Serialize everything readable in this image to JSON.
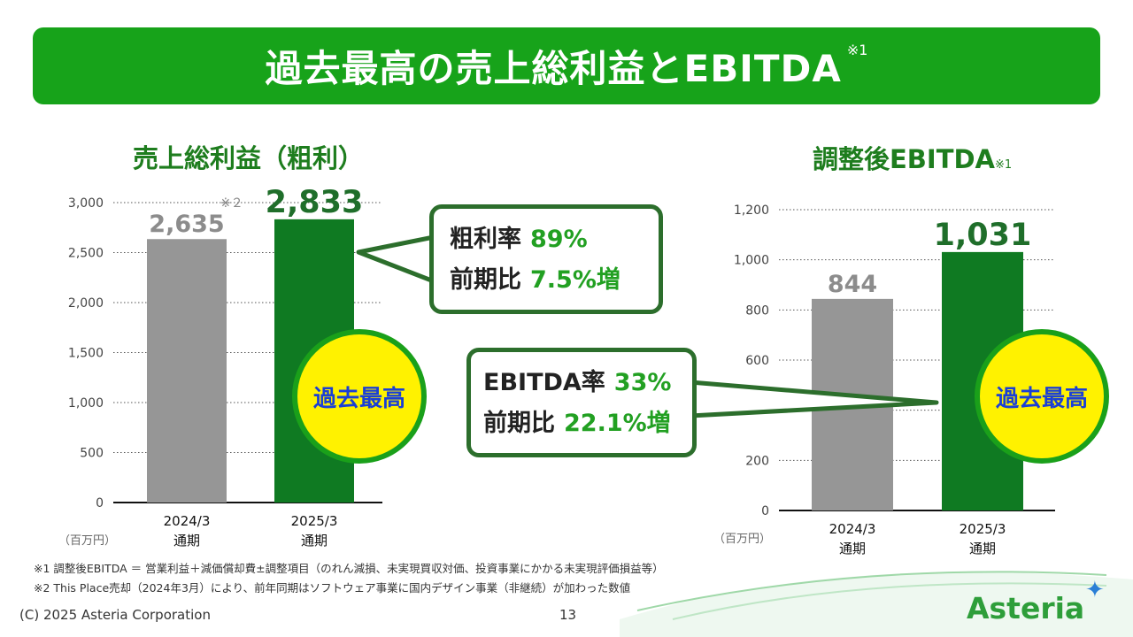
{
  "banner": {
    "title": "過去最高の売上総利益とEBITDA",
    "note": "※1"
  },
  "left": {
    "title": "売上総利益（粗利）",
    "unit": "（百万円）",
    "note": "※２",
    "badge": "過去最高",
    "callout": {
      "line1_label": "粗利率",
      "line1_value": "89%",
      "line2_label": "前期比",
      "line2_value": "7.5%増"
    }
  },
  "right": {
    "title": "調整後EBITDA",
    "title_note": "※1",
    "unit": "（百万円）",
    "badge": "過去最高",
    "callout": {
      "line1_label": "EBITDA率",
      "line1_value": "33%",
      "line2_label": "前期比",
      "line2_value": "22.1%増"
    }
  },
  "chart_data": [
    {
      "type": "bar",
      "title": "売上総利益（粗利）",
      "categories": [
        "2024/3\n通期",
        "2025/3\n通期"
      ],
      "values": [
        2635,
        2833
      ],
      "value_labels": [
        "2,635",
        "2,833"
      ],
      "yticks": [
        "0",
        "500",
        "1,000",
        "1,500",
        "2,000",
        "2,500",
        "3,000"
      ],
      "ylim": [
        0,
        3000
      ],
      "grid": "dotted",
      "colors": [
        "#969696",
        "#0f7a22"
      ]
    },
    {
      "type": "bar",
      "title": "調整後EBITDA",
      "categories": [
        "2024/3\n通期",
        "2025/3\n通期"
      ],
      "values": [
        844,
        1031
      ],
      "value_labels": [
        "844",
        "1,031"
      ],
      "yticks": [
        "0",
        "200",
        "",
        "600",
        "800",
        "1,000",
        "1,200"
      ],
      "ylim": [
        0,
        1200
      ],
      "grid": "dotted",
      "colors": [
        "#969696",
        "#0f7a22"
      ]
    }
  ],
  "footnotes": [
    "※1 調整後EBITDA ＝ 営業利益＋減価償却費±調整項目（のれん減損、未実現買収対価、投資事業にかかる未実現評価損益等）",
    "※2 This Place売却（2024年3月）により、前年同期はソフトウェア事業に国内デザイン事業（非継続）が加わった数値"
  ],
  "footer": {
    "copyright": "(C) 2025 Asteria Corporation",
    "page": "13",
    "logo": "Asteria"
  }
}
